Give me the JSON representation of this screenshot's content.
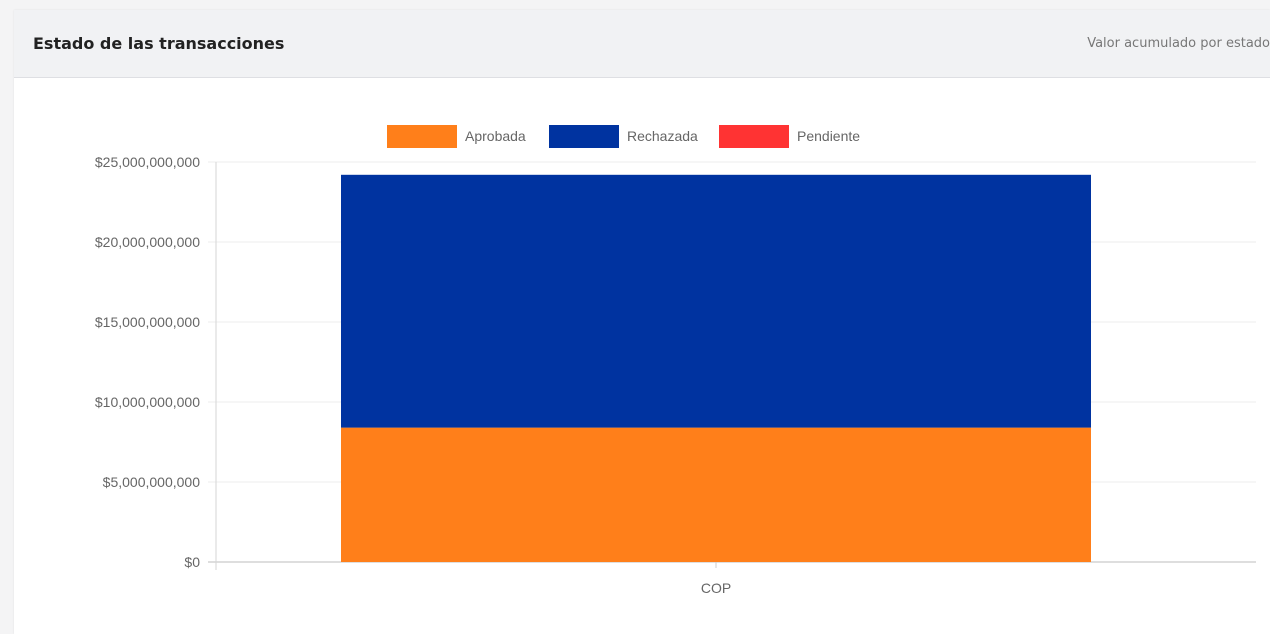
{
  "header": {
    "title": "Estado de las transacciones",
    "subtitle": "Valor acumulado por estado"
  },
  "chart_data": {
    "type": "bar",
    "stacked": true,
    "categories": [
      "COP"
    ],
    "series": [
      {
        "name": "Aprobada",
        "color": "#ff7f1a",
        "values": [
          8400000000
        ]
      },
      {
        "name": "Rechazada",
        "color": "#0033a0",
        "values": [
          15800000000
        ]
      },
      {
        "name": "Pendiente",
        "color": "#ff3333",
        "values": [
          0
        ]
      }
    ],
    "ylim": [
      0,
      25000000000
    ],
    "yticks": [
      {
        "value": 0,
        "label": "$0"
      },
      {
        "value": 5000000000,
        "label": "$5,000,000,000"
      },
      {
        "value": 10000000000,
        "label": "$10,000,000,000"
      },
      {
        "value": 15000000000,
        "label": "$15,000,000,000"
      },
      {
        "value": 20000000000,
        "label": "$20,000,000,000"
      },
      {
        "value": 25000000000,
        "label": "$25,000,000,000"
      }
    ],
    "xlabel": "",
    "ylabel": "",
    "grid": true,
    "legend_position": "top"
  }
}
